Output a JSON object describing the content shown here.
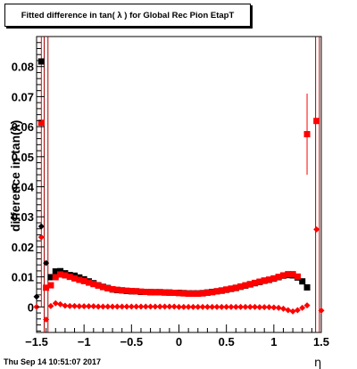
{
  "header": {
    "title": "Fitted difference in tan( λ ) for Global Rec Pion EtapT"
  },
  "footer": {
    "timestamp": "Thu Sep 14 10:51:07 2017"
  },
  "chart_data": {
    "type": "scatter",
    "title": "Fitted difference in tan( λ ) for Global Rec Pion EtapT",
    "xlabel": "η",
    "ylabel": "difference in tan(λ)",
    "xlim": [
      -1.5,
      1.5
    ],
    "ylim": [
      -0.0085,
      0.09
    ],
    "x_ticks": [
      "−1.5",
      "−1",
      "−0.5",
      "0",
      "0.5",
      "1",
      "1.5"
    ],
    "y_ticks": [
      "0",
      "0.01",
      "0.02",
      "0.03",
      "0.04",
      "0.05",
      "0.06",
      "0.07",
      "0.08"
    ],
    "series": [
      {
        "marker": "square",
        "color": "#000000",
        "x": [
          -1.45,
          -1.35,
          -1.3,
          -1.25,
          -1.2,
          -1.15,
          -1.1,
          -1.05,
          -1.0,
          -0.95,
          -0.9,
          -0.85,
          -0.8,
          -0.75,
          -0.7,
          -0.65,
          -0.6,
          -0.55,
          -0.5,
          -0.45,
          -0.4,
          -0.35,
          -0.3,
          -0.25,
          -0.2,
          -0.15,
          -0.1,
          -0.05,
          0.0,
          0.05,
          0.1,
          0.15,
          0.2,
          0.25,
          0.3,
          0.35,
          0.4,
          0.45,
          0.5,
          0.55,
          0.6,
          0.65,
          0.7,
          0.75,
          0.8,
          0.85,
          0.9,
          0.95,
          1.0,
          1.05,
          1.1,
          1.15,
          1.2,
          1.25,
          1.3,
          1.35
        ],
        "y": [
          0.0817,
          0.0099,
          0.0118,
          0.0119,
          0.0112,
          0.0106,
          0.0104,
          0.0098,
          0.0092,
          0.0085,
          0.0079,
          0.0072,
          0.0067,
          0.0063,
          0.0058,
          0.0056,
          0.0055,
          0.0053,
          0.0052,
          0.0052,
          0.005,
          0.005,
          0.0049,
          0.0049,
          0.0049,
          0.0048,
          0.0048,
          0.0047,
          0.0047,
          0.0046,
          0.0045,
          0.0045,
          0.0045,
          0.0046,
          0.0048,
          0.005,
          0.0052,
          0.0054,
          0.0057,
          0.006,
          0.0063,
          0.0067,
          0.0071,
          0.0075,
          0.0079,
          0.0083,
          0.0087,
          0.009,
          0.0094,
          0.0099,
          0.0104,
          0.0106,
          0.0105,
          0.0098,
          0.0085,
          0.0065
        ]
      },
      {
        "marker": "square",
        "color": "#ff0000",
        "x": [
          -1.45,
          -1.4,
          -1.35,
          -1.3,
          -1.25,
          -1.2,
          -1.15,
          -1.1,
          -1.05,
          -1.0,
          -0.95,
          -0.9,
          -0.85,
          -0.8,
          -0.75,
          -0.7,
          -0.65,
          -0.6,
          -0.55,
          -0.5,
          -0.45,
          -0.4,
          -0.35,
          -0.3,
          -0.25,
          -0.2,
          -0.15,
          -0.1,
          -0.05,
          0.0,
          0.05,
          0.1,
          0.15,
          0.2,
          0.25,
          0.3,
          0.35,
          0.4,
          0.45,
          0.5,
          0.55,
          0.6,
          0.65,
          0.7,
          0.75,
          0.8,
          0.85,
          0.9,
          0.95,
          1.0,
          1.05,
          1.1,
          1.15,
          1.2,
          1.25,
          1.35,
          1.45
        ],
        "y": [
          0.0613,
          0.0064,
          0.0072,
          0.0099,
          0.0108,
          0.0105,
          0.01,
          0.0095,
          0.009,
          0.0086,
          0.0081,
          0.0076,
          0.0071,
          0.0066,
          0.0062,
          0.0059,
          0.0057,
          0.0055,
          0.0054,
          0.0053,
          0.0052,
          0.0051,
          0.005,
          0.005,
          0.0049,
          0.0049,
          0.0048,
          0.0047,
          0.0047,
          0.0046,
          0.0045,
          0.0044,
          0.0044,
          0.0044,
          0.0045,
          0.0047,
          0.0049,
          0.0052,
          0.0055,
          0.0058,
          0.0061,
          0.0064,
          0.0068,
          0.0072,
          0.0076,
          0.008,
          0.0084,
          0.0088,
          0.0091,
          0.0095,
          0.01,
          0.0105,
          0.0109,
          0.0109,
          0.0101,
          0.0575,
          0.0619
        ],
        "yerr_x": [
          -1.45,
          1.35
        ],
        "yerr_lo": [
          0.0,
          0.044
        ],
        "yerr_hi": [
          0.09,
          0.071
        ]
      },
      {
        "marker": "diamond",
        "color": "#000000",
        "x": [
          -1.5,
          -1.45,
          -1.4
        ],
        "y": [
          0.0034,
          0.0268,
          0.0146
        ]
      },
      {
        "marker": "diamond",
        "color": "#ff0000",
        "x": [
          -1.5,
          -1.45,
          -1.4,
          -1.35,
          -1.3,
          -1.25,
          -1.2,
          -1.15,
          -1.1,
          -1.05,
          -1.0,
          -0.95,
          -0.9,
          -0.85,
          -0.8,
          -0.75,
          -0.7,
          -0.65,
          -0.6,
          -0.55,
          -0.5,
          -0.45,
          -0.4,
          -0.35,
          -0.3,
          -0.25,
          -0.2,
          -0.15,
          -0.1,
          -0.05,
          0.0,
          0.05,
          0.1,
          0.15,
          0.2,
          0.25,
          0.3,
          0.35,
          0.4,
          0.45,
          0.5,
          0.55,
          0.6,
          0.65,
          0.7,
          0.75,
          0.8,
          0.85,
          0.9,
          0.95,
          1.0,
          1.05,
          1.1,
          1.15,
          1.2,
          1.25,
          1.3,
          1.35,
          1.45,
          1.5
        ],
        "y": [
          0.0,
          0.0232,
          -0.0042,
          0.0003,
          0.0012,
          0.0009,
          0.0004,
          0.0003,
          0.0003,
          0.0002,
          0.0002,
          0.0002,
          0.0002,
          0.0001,
          0.0001,
          0.0001,
          0.0001,
          0.0001,
          0.0001,
          0.0001,
          0.0001,
          0.0001,
          0.0001,
          0.0001,
          0.0001,
          0.0001,
          0.0001,
          0.0001,
          0.0001,
          0.0001,
          0.0,
          0.0,
          0.0,
          0.0,
          0.0,
          0.0,
          0.0,
          0.0,
          0.0,
          0.0,
          0.0,
          0.0,
          0.0,
          0.0,
          0.0,
          0.0,
          0.0,
          -0.0001,
          -0.0001,
          -0.0001,
          -0.0002,
          -0.0003,
          -0.0006,
          -0.0011,
          -0.0015,
          -0.0011,
          -0.0003,
          0.0005,
          0.0258,
          -0.0012
        ]
      }
    ],
    "edge_lines": {
      "color": "#aa0000",
      "x": [
        -1.42,
        -1.38,
        1.44,
        1.48
      ]
    }
  }
}
